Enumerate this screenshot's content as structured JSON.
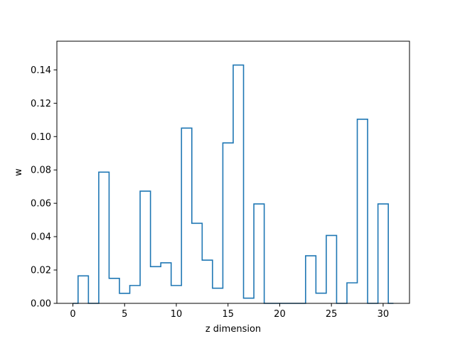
{
  "chart_data": {
    "type": "line",
    "drawstyle": "steps-mid",
    "title": "",
    "xlabel": "z dimension",
    "ylabel": "w",
    "xlim": [
      -1.55,
      32.55
    ],
    "ylim": [
      0,
      0.1572
    ],
    "x_ticks": [
      0,
      5,
      10,
      15,
      20,
      25,
      30
    ],
    "x_tick_labels": [
      "0",
      "5",
      "10",
      "15",
      "20",
      "25",
      "30"
    ],
    "y_ticks": [
      0,
      0.02,
      0.04,
      0.06,
      0.08,
      0.1,
      0.12,
      0.14
    ],
    "y_tick_labels": [
      "0.00",
      "0.02",
      "0.04",
      "0.06",
      "0.08",
      "0.10",
      "0.12",
      "0.14"
    ],
    "grid": false,
    "legend": "none",
    "series": [
      {
        "color": "#1f77b4",
        "x": [
          0,
          1,
          2,
          3,
          4,
          5,
          6,
          7,
          8,
          9,
          10,
          11,
          12,
          13,
          14,
          15,
          16,
          17,
          18,
          19,
          20,
          21,
          22,
          23,
          24,
          25,
          26,
          27,
          28,
          29,
          30,
          31
        ],
        "values": [
          0,
          0.0165,
          0,
          0.0787,
          0.015,
          0.006,
          0.0107,
          0.0673,
          0.022,
          0.0243,
          0.0107,
          0.1051,
          0.048,
          0.0259,
          0.0091,
          0.0962,
          0.1429,
          0.0031,
          0.0596,
          0,
          0,
          0,
          0,
          0.0285,
          0.0061,
          0.0407,
          0,
          0.0123,
          0.1104,
          0,
          0.0596,
          0
        ]
      }
    ]
  }
}
